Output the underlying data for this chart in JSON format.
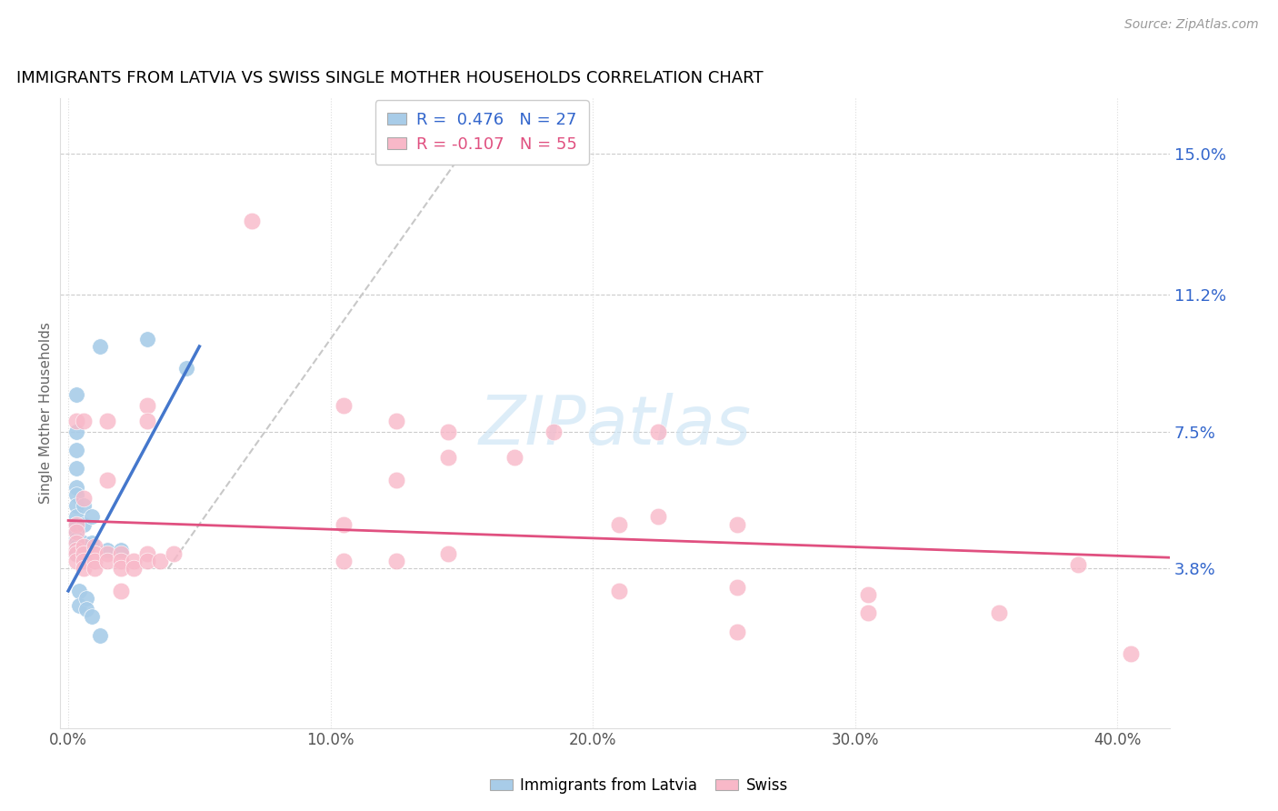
{
  "title": "IMMIGRANTS FROM LATVIA VS SWISS SINGLE MOTHER HOUSEHOLDS CORRELATION CHART",
  "source": "Source: ZipAtlas.com",
  "xlabel_ticks": [
    "0.0%",
    "10.0%",
    "20.0%",
    "30.0%",
    "40.0%"
  ],
  "xlabel_tick_vals": [
    0.0,
    10.0,
    20.0,
    30.0,
    40.0
  ],
  "ylabel_ticks": [
    "3.8%",
    "7.5%",
    "11.2%",
    "15.0%"
  ],
  "ylabel_tick_vals": [
    3.8,
    7.5,
    11.2,
    15.0
  ],
  "xlim": [
    -0.3,
    42.0
  ],
  "ylim": [
    -0.5,
    16.5
  ],
  "legend_label1": "Immigrants from Latvia",
  "legend_label2": "Swiss",
  "color_blue": "#a8cce8",
  "color_blue_line": "#4477cc",
  "color_pink": "#f8b8c8",
  "color_pink_line": "#e05080",
  "color_diag": "#c8c8c8",
  "watermark": "ZIPatlas",
  "blue_dots": [
    [
      0.3,
      8.5
    ],
    [
      0.3,
      7.5
    ],
    [
      0.3,
      7.0
    ],
    [
      0.3,
      6.5
    ],
    [
      0.3,
      6.0
    ],
    [
      0.3,
      5.8
    ],
    [
      0.3,
      5.5
    ],
    [
      0.3,
      5.2
    ],
    [
      0.3,
      5.0
    ],
    [
      0.3,
      4.8
    ],
    [
      0.3,
      4.6
    ],
    [
      0.3,
      4.5
    ],
    [
      0.3,
      4.4
    ],
    [
      0.3,
      4.3
    ],
    [
      0.3,
      4.2
    ],
    [
      0.6,
      5.5
    ],
    [
      0.6,
      5.0
    ],
    [
      0.6,
      4.5
    ],
    [
      0.9,
      5.2
    ],
    [
      0.9,
      4.5
    ],
    [
      1.2,
      9.8
    ],
    [
      1.5,
      4.3
    ],
    [
      2.0,
      4.3
    ],
    [
      0.4,
      3.2
    ],
    [
      0.4,
      2.8
    ],
    [
      0.7,
      3.0
    ],
    [
      0.7,
      2.7
    ],
    [
      0.9,
      2.5
    ],
    [
      1.2,
      2.0
    ],
    [
      3.0,
      10.0
    ],
    [
      4.5,
      9.2
    ]
  ],
  "pink_dots": [
    [
      0.3,
      7.8
    ],
    [
      0.3,
      5.0
    ],
    [
      0.3,
      4.8
    ],
    [
      0.3,
      4.5
    ],
    [
      0.3,
      4.3
    ],
    [
      0.3,
      4.2
    ],
    [
      0.3,
      4.0
    ],
    [
      0.6,
      7.8
    ],
    [
      0.6,
      5.7
    ],
    [
      0.6,
      4.4
    ],
    [
      0.6,
      4.2
    ],
    [
      0.6,
      4.0
    ],
    [
      0.6,
      3.8
    ],
    [
      1.0,
      4.4
    ],
    [
      1.0,
      4.2
    ],
    [
      1.0,
      4.0
    ],
    [
      1.0,
      3.8
    ],
    [
      1.5,
      7.8
    ],
    [
      1.5,
      6.2
    ],
    [
      1.5,
      4.2
    ],
    [
      1.5,
      4.0
    ],
    [
      2.0,
      4.2
    ],
    [
      2.0,
      4.0
    ],
    [
      2.0,
      3.8
    ],
    [
      2.0,
      3.2
    ],
    [
      2.5,
      4.0
    ],
    [
      2.5,
      3.8
    ],
    [
      3.0,
      8.2
    ],
    [
      3.0,
      7.8
    ],
    [
      3.0,
      4.2
    ],
    [
      3.0,
      4.0
    ],
    [
      3.5,
      4.0
    ],
    [
      4.0,
      4.2
    ],
    [
      7.0,
      13.2
    ],
    [
      10.5,
      8.2
    ],
    [
      10.5,
      5.0
    ],
    [
      10.5,
      4.0
    ],
    [
      12.5,
      7.8
    ],
    [
      12.5,
      6.2
    ],
    [
      12.5,
      4.0
    ],
    [
      14.5,
      7.5
    ],
    [
      14.5,
      6.8
    ],
    [
      14.5,
      4.2
    ],
    [
      17.0,
      6.8
    ],
    [
      18.5,
      7.5
    ],
    [
      21.0,
      5.0
    ],
    [
      21.0,
      3.2
    ],
    [
      22.5,
      7.5
    ],
    [
      22.5,
      5.2
    ],
    [
      25.5,
      5.0
    ],
    [
      25.5,
      3.3
    ],
    [
      25.5,
      2.1
    ],
    [
      30.5,
      3.1
    ],
    [
      30.5,
      2.6
    ],
    [
      35.5,
      2.6
    ],
    [
      38.5,
      3.9
    ],
    [
      40.5,
      1.5
    ]
  ],
  "blue_line_x": [
    0.0,
    5.0
  ],
  "blue_line_y": [
    3.2,
    9.8
  ],
  "pink_line_x": [
    0.0,
    42.0
  ],
  "pink_line_y": [
    5.1,
    4.1
  ],
  "diag_line_x": [
    3.8,
    15.5
  ],
  "diag_line_y": [
    3.8,
    15.5
  ]
}
